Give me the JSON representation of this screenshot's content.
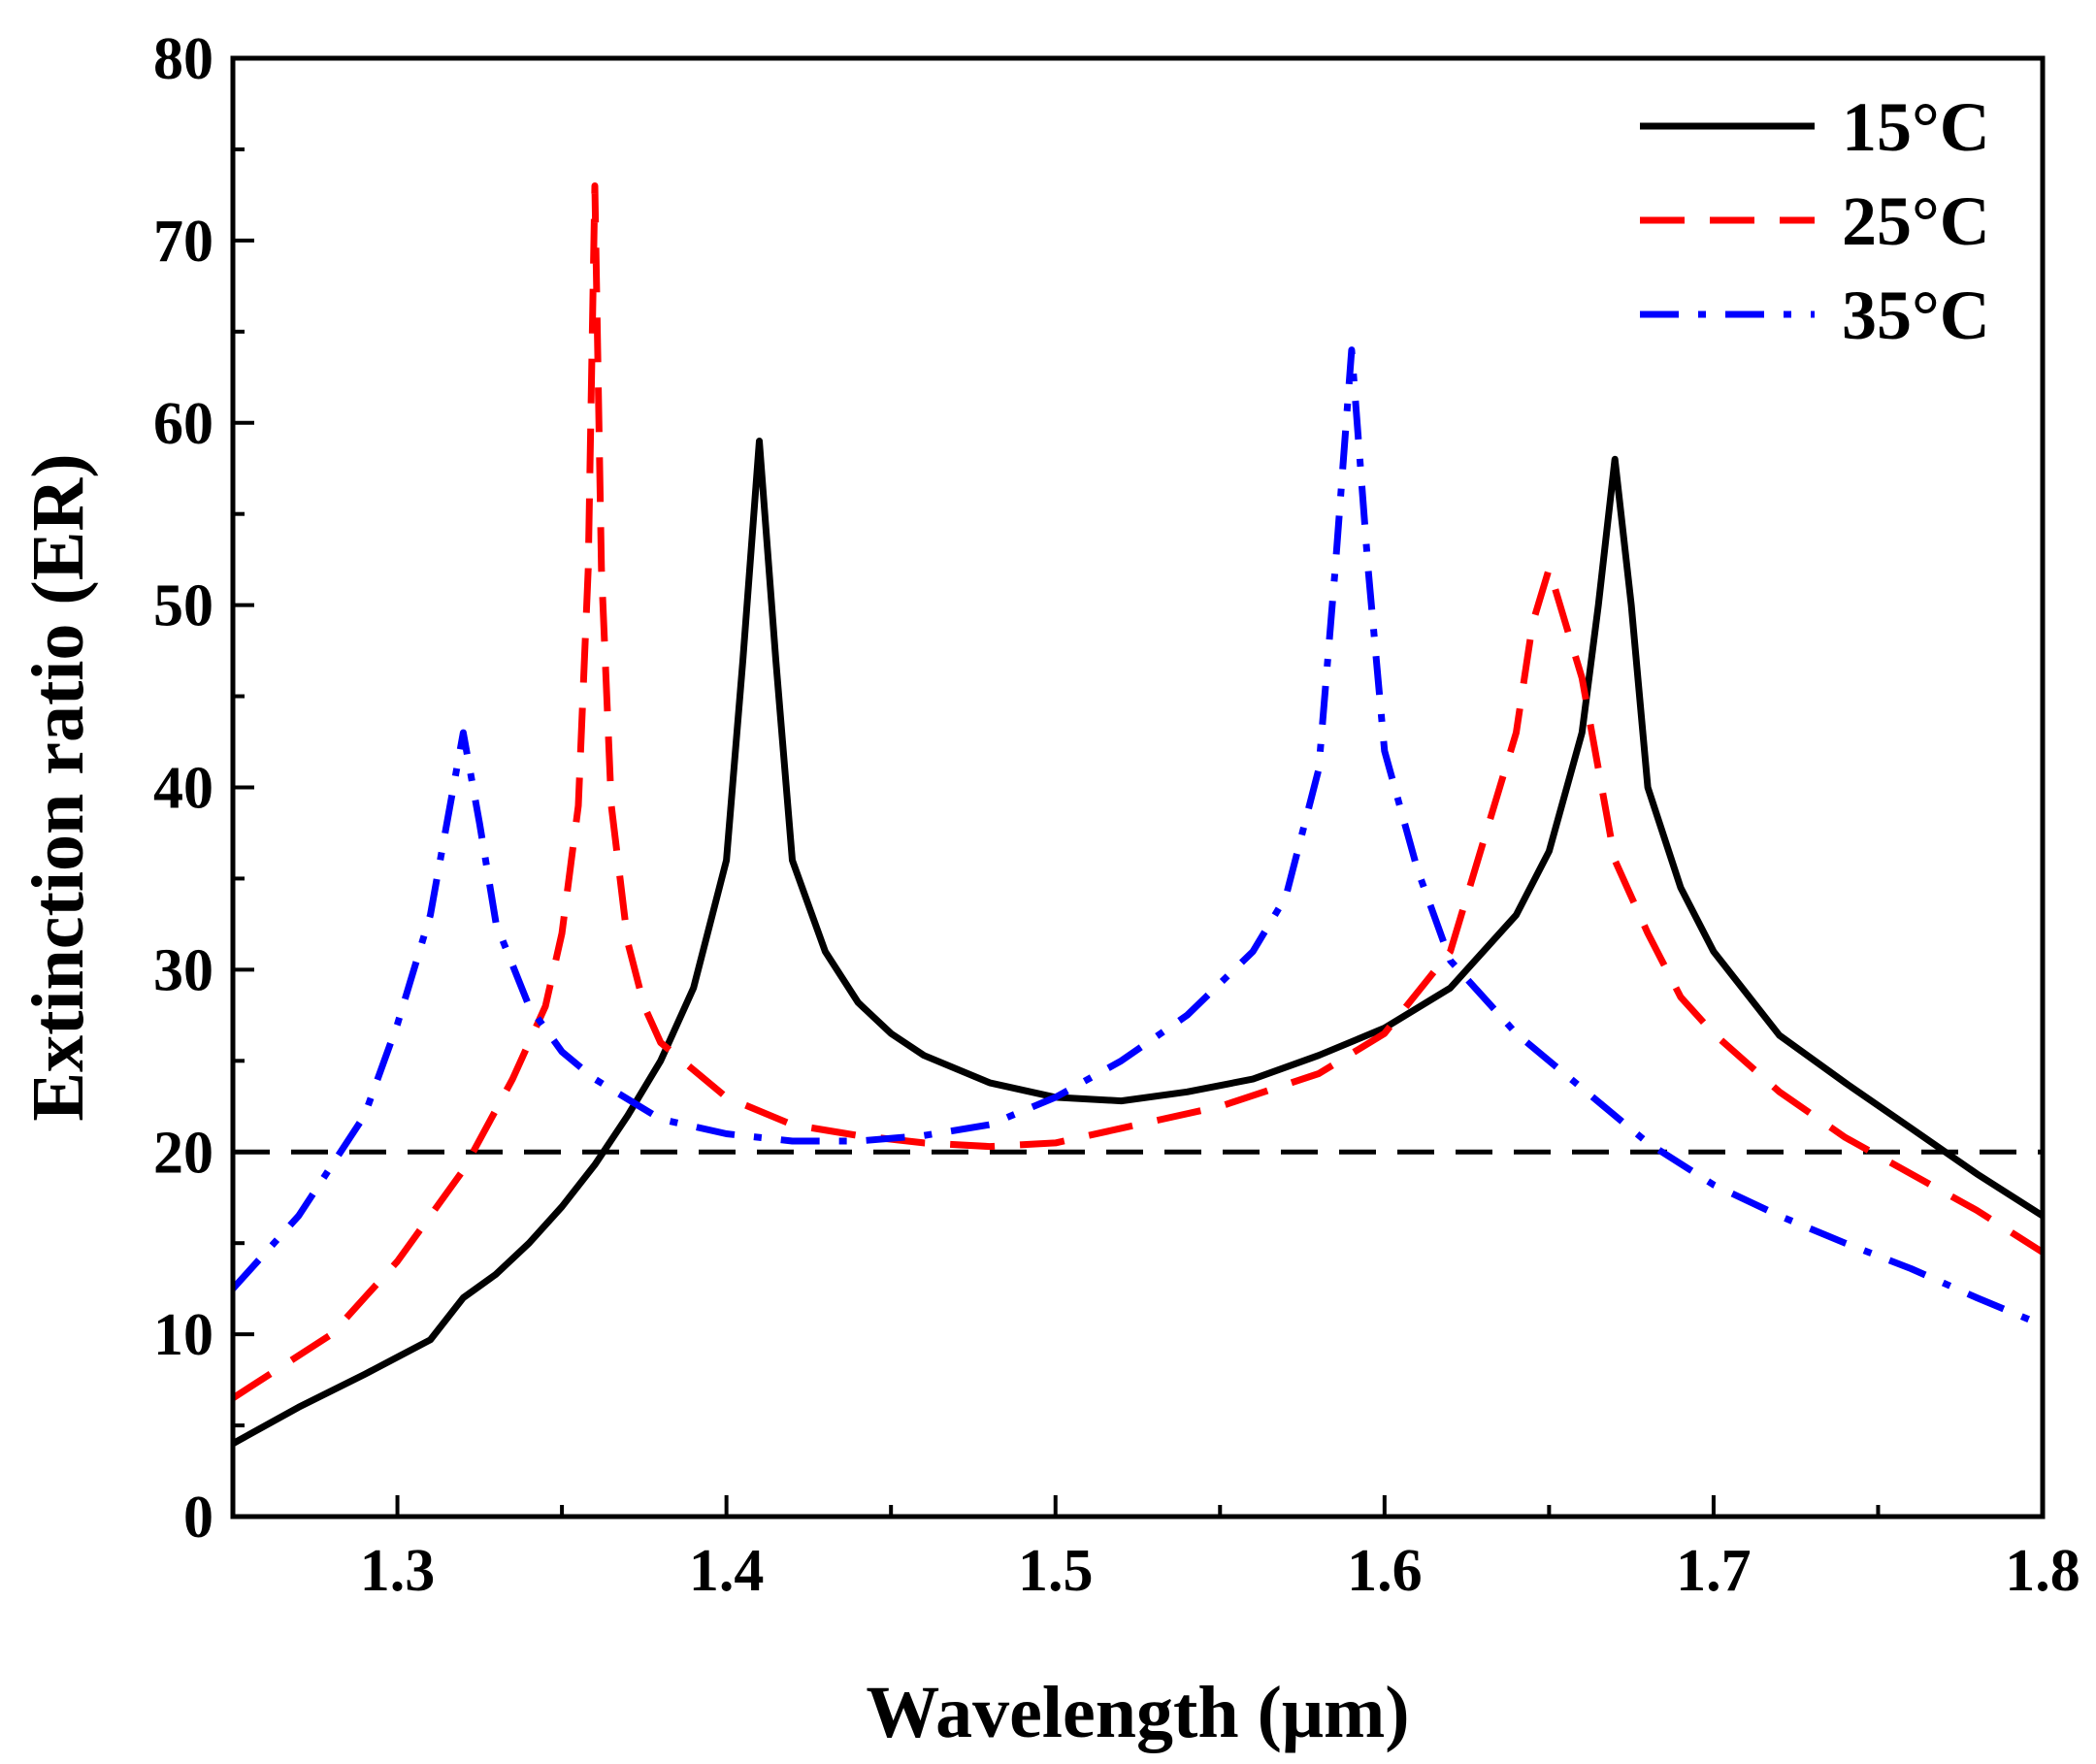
{
  "chart_data": {
    "type": "line",
    "title": "",
    "xlabel": "Wavelength (μm)",
    "ylabel": "Extinction ratio (ER)",
    "xlim": [
      1.25,
      1.8
    ],
    "ylim": [
      0,
      80
    ],
    "xticks": [
      1.3,
      1.4,
      1.5,
      1.6,
      1.7,
      1.8
    ],
    "xtick_labels": [
      "1.3",
      "1.4",
      "1.5",
      "1.6",
      "1.7",
      "1.8"
    ],
    "yticks": [
      0,
      10,
      20,
      30,
      40,
      50,
      60,
      70,
      80
    ],
    "ytick_labels": [
      "0",
      "10",
      "20",
      "30",
      "40",
      "50",
      "60",
      "70",
      "80"
    ],
    "grid": false,
    "legend_position": "top-right",
    "reference_line": {
      "y": 20,
      "color": "#000000",
      "style": "dashed"
    },
    "series": [
      {
        "name": "15°C",
        "color": "#000000",
        "style": "solid",
        "x": [
          1.25,
          1.27,
          1.29,
          1.31,
          1.32,
          1.33,
          1.34,
          1.35,
          1.36,
          1.37,
          1.38,
          1.39,
          1.4,
          1.405,
          1.41,
          1.415,
          1.42,
          1.43,
          1.44,
          1.45,
          1.46,
          1.48,
          1.5,
          1.52,
          1.54,
          1.56,
          1.58,
          1.6,
          1.62,
          1.64,
          1.65,
          1.66,
          1.665,
          1.67,
          1.675,
          1.68,
          1.69,
          1.7,
          1.72,
          1.74,
          1.76,
          1.78,
          1.8
        ],
        "y": [
          4.0,
          6.0,
          7.8,
          9.7,
          12.0,
          13.3,
          15.0,
          17.0,
          19.3,
          22.0,
          25.0,
          29.0,
          36.0,
          47.0,
          59.0,
          47.0,
          36.0,
          31.0,
          28.2,
          26.5,
          25.3,
          23.8,
          23.0,
          22.8,
          23.3,
          24.0,
          25.3,
          26.8,
          29.0,
          33.0,
          36.5,
          43.0,
          50.0,
          58.0,
          50.0,
          40.0,
          34.5,
          31.0,
          26.4,
          23.8,
          21.3,
          18.8,
          16.5
        ]
      },
      {
        "name": "25°C",
        "color": "#ff0000",
        "style": "dashed",
        "x": [
          1.25,
          1.28,
          1.3,
          1.32,
          1.335,
          1.345,
          1.35,
          1.355,
          1.358,
          1.36,
          1.362,
          1.365,
          1.37,
          1.375,
          1.38,
          1.39,
          1.4,
          1.42,
          1.44,
          1.46,
          1.48,
          1.5,
          1.52,
          1.55,
          1.58,
          1.6,
          1.62,
          1.64,
          1.645,
          1.65,
          1.655,
          1.66,
          1.67,
          1.68,
          1.69,
          1.7,
          1.72,
          1.74,
          1.76,
          1.78,
          1.8
        ],
        "y": [
          6.5,
          10.0,
          14.0,
          19.0,
          24.0,
          28.0,
          32.0,
          39.0,
          52.0,
          73.0,
          52.0,
          39.0,
          31.5,
          28.0,
          26.0,
          24.5,
          23.0,
          21.5,
          20.9,
          20.5,
          20.3,
          20.5,
          21.3,
          22.5,
          24.3,
          26.5,
          31.0,
          43.0,
          49.0,
          52.0,
          49.0,
          46.0,
          36.0,
          32.0,
          28.5,
          26.5,
          23.3,
          20.8,
          18.8,
          16.8,
          14.5
        ]
      },
      {
        "name": "35°C",
        "color": "#0000ff",
        "style": "dash-dot",
        "x": [
          1.25,
          1.27,
          1.29,
          1.3,
          1.31,
          1.315,
          1.32,
          1.325,
          1.33,
          1.34,
          1.35,
          1.36,
          1.38,
          1.4,
          1.42,
          1.44,
          1.46,
          1.48,
          1.5,
          1.52,
          1.54,
          1.56,
          1.57,
          1.58,
          1.585,
          1.59,
          1.595,
          1.6,
          1.61,
          1.62,
          1.64,
          1.66,
          1.68,
          1.7,
          1.72,
          1.74,
          1.76,
          1.78,
          1.8
        ],
        "y": [
          12.5,
          16.5,
          22.0,
          27.0,
          33.0,
          38.0,
          43.0,
          38.0,
          32.5,
          28.0,
          25.5,
          24.0,
          21.8,
          21.0,
          20.6,
          20.6,
          20.9,
          21.5,
          23.0,
          25.0,
          27.5,
          31.0,
          34.0,
          41.0,
          52.0,
          64.0,
          52.0,
          42.0,
          35.5,
          30.5,
          26.5,
          23.5,
          20.5,
          18.2,
          16.5,
          15.0,
          13.6,
          12.0,
          10.5
        ]
      }
    ]
  }
}
